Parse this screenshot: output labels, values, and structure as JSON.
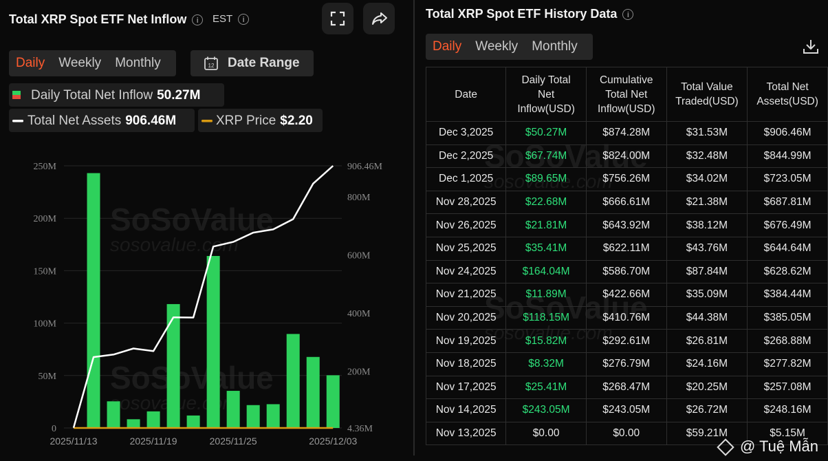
{
  "left_panel": {
    "title": "Total XRP Spot ETF Net Inflow",
    "info_icon": "i",
    "timezone": "EST",
    "period_tabs": [
      "Daily",
      "Weekly",
      "Monthly"
    ],
    "active_tab": "Daily",
    "date_range_label": "Date Range",
    "legend": {
      "inflow_label": "Daily Total Net Inflow",
      "inflow_value": "50.27M",
      "assets_label": "Total Net Assets",
      "assets_value": "906.46M",
      "price_label": "XRP Price",
      "price_value": "$2.20"
    },
    "watermark": {
      "brand": "SoSoValue",
      "site": "sosovalue.com"
    }
  },
  "colors": {
    "accent": "#ff5b2e",
    "bar_positive": "#2ed15c",
    "bar_negative": "#e04a3a",
    "assets_line": "#ffffff",
    "price_line": "#d89a12",
    "positive_text": "#2ee07a"
  },
  "chart_data": {
    "type": "bar",
    "categories": [
      "2025/11/13",
      "2025/11/14",
      "2025/11/17",
      "2025/11/18",
      "2025/11/19",
      "2025/11/20",
      "2025/11/21",
      "2025/11/24",
      "2025/11/25",
      "2025/11/26",
      "2025/11/28",
      "2025/12/01",
      "2025/12/02",
      "2025/12/03"
    ],
    "x_tick_labels": [
      "2025/11/13",
      "2025/11/19",
      "2025/11/25",
      "2025/12/03"
    ],
    "series": [
      {
        "name": "Daily Total Net Inflow",
        "axis": "left",
        "type": "bar",
        "values": [
          0,
          243.05,
          25.41,
          8.32,
          15.82,
          118.15,
          11.89,
          164.04,
          35.41,
          21.81,
          22.68,
          89.65,
          67.74,
          50.27
        ]
      },
      {
        "name": "Total Net Assets",
        "axis": "right",
        "type": "line",
        "values": [
          5.15,
          248.16,
          257.08,
          277.82,
          268.88,
          385.05,
          384.44,
          628.62,
          644.64,
          676.49,
          687.81,
          723.05,
          844.99,
          906.46
        ]
      },
      {
        "name": "XRP Price",
        "axis": "price",
        "type": "line",
        "values": [
          2.2,
          2.2,
          2.2,
          2.2,
          2.2,
          2.2,
          2.2,
          2.2,
          2.2,
          2.2,
          2.2,
          2.2,
          2.2,
          2.2
        ]
      }
    ],
    "y_left": {
      "ticks": [
        "0",
        "50M",
        "100M",
        "150M",
        "200M",
        "250M"
      ],
      "tick_values": [
        0,
        50,
        100,
        150,
        200,
        250
      ],
      "range": [
        0,
        250
      ]
    },
    "y_right": {
      "ticks": [
        "4.36M",
        "200M",
        "400M",
        "600M",
        "800M",
        "906.46M"
      ],
      "tick_values": [
        4.36,
        200,
        400,
        600,
        800,
        906.46
      ],
      "range": [
        4.36,
        906.46
      ]
    },
    "grid": true
  },
  "right_panel": {
    "title": "Total XRP Spot ETF History Data",
    "period_tabs": [
      "Daily",
      "Weekly",
      "Monthly"
    ],
    "active_tab": "Daily",
    "download_icon": "download-icon",
    "columns": [
      "Date",
      "Daily Total Net Inflow(USD)",
      "Cumulative Total Net Inflow(USD)",
      "Total Value Traded(USD)",
      "Total Net Assets(USD)"
    ],
    "column_lines": [
      [
        "Date"
      ],
      [
        "Daily Total",
        "Net",
        "Inflow(USD)"
      ],
      [
        "Cumulative",
        "Total Net",
        "Inflow(USD)"
      ],
      [
        "Total Value",
        "Traded(USD)"
      ],
      [
        "Total Net",
        "Assets(USD)"
      ]
    ],
    "rows": [
      [
        "Dec 3,2025",
        "$50.27M",
        "$874.28M",
        "$31.53M",
        "$906.46M"
      ],
      [
        "Dec 2,2025",
        "$67.74M",
        "$824.00M",
        "$32.48M",
        "$844.99M"
      ],
      [
        "Dec 1,2025",
        "$89.65M",
        "$756.26M",
        "$34.02M",
        "$723.05M"
      ],
      [
        "Nov 28,2025",
        "$22.68M",
        "$666.61M",
        "$21.38M",
        "$687.81M"
      ],
      [
        "Nov 26,2025",
        "$21.81M",
        "$643.92M",
        "$38.12M",
        "$676.49M"
      ],
      [
        "Nov 25,2025",
        "$35.41M",
        "$622.11M",
        "$43.76M",
        "$644.64M"
      ],
      [
        "Nov 24,2025",
        "$164.04M",
        "$586.70M",
        "$87.84M",
        "$628.62M"
      ],
      [
        "Nov 21,2025",
        "$11.89M",
        "$422.66M",
        "$35.09M",
        "$384.44M"
      ],
      [
        "Nov 20,2025",
        "$118.15M",
        "$410.76M",
        "$44.38M",
        "$385.05M"
      ],
      [
        "Nov 19,2025",
        "$15.82M",
        "$292.61M",
        "$26.81M",
        "$268.88M"
      ],
      [
        "Nov 18,2025",
        "$8.32M",
        "$276.79M",
        "$24.16M",
        "$277.82M"
      ],
      [
        "Nov 17,2025",
        "$25.41M",
        "$268.47M",
        "$20.25M",
        "$257.08M"
      ],
      [
        "Nov 14,2025",
        "$243.05M",
        "$243.05M",
        "$26.72M",
        "$248.16M"
      ],
      [
        "Nov 13,2025",
        "$0.00",
        "$0.00",
        "$59.21M",
        "$5.15M"
      ]
    ],
    "watermark": {
      "brand": "SoSoValue",
      "site": "sosovalue.com"
    }
  },
  "credit": "@ Tuệ Mẫn"
}
